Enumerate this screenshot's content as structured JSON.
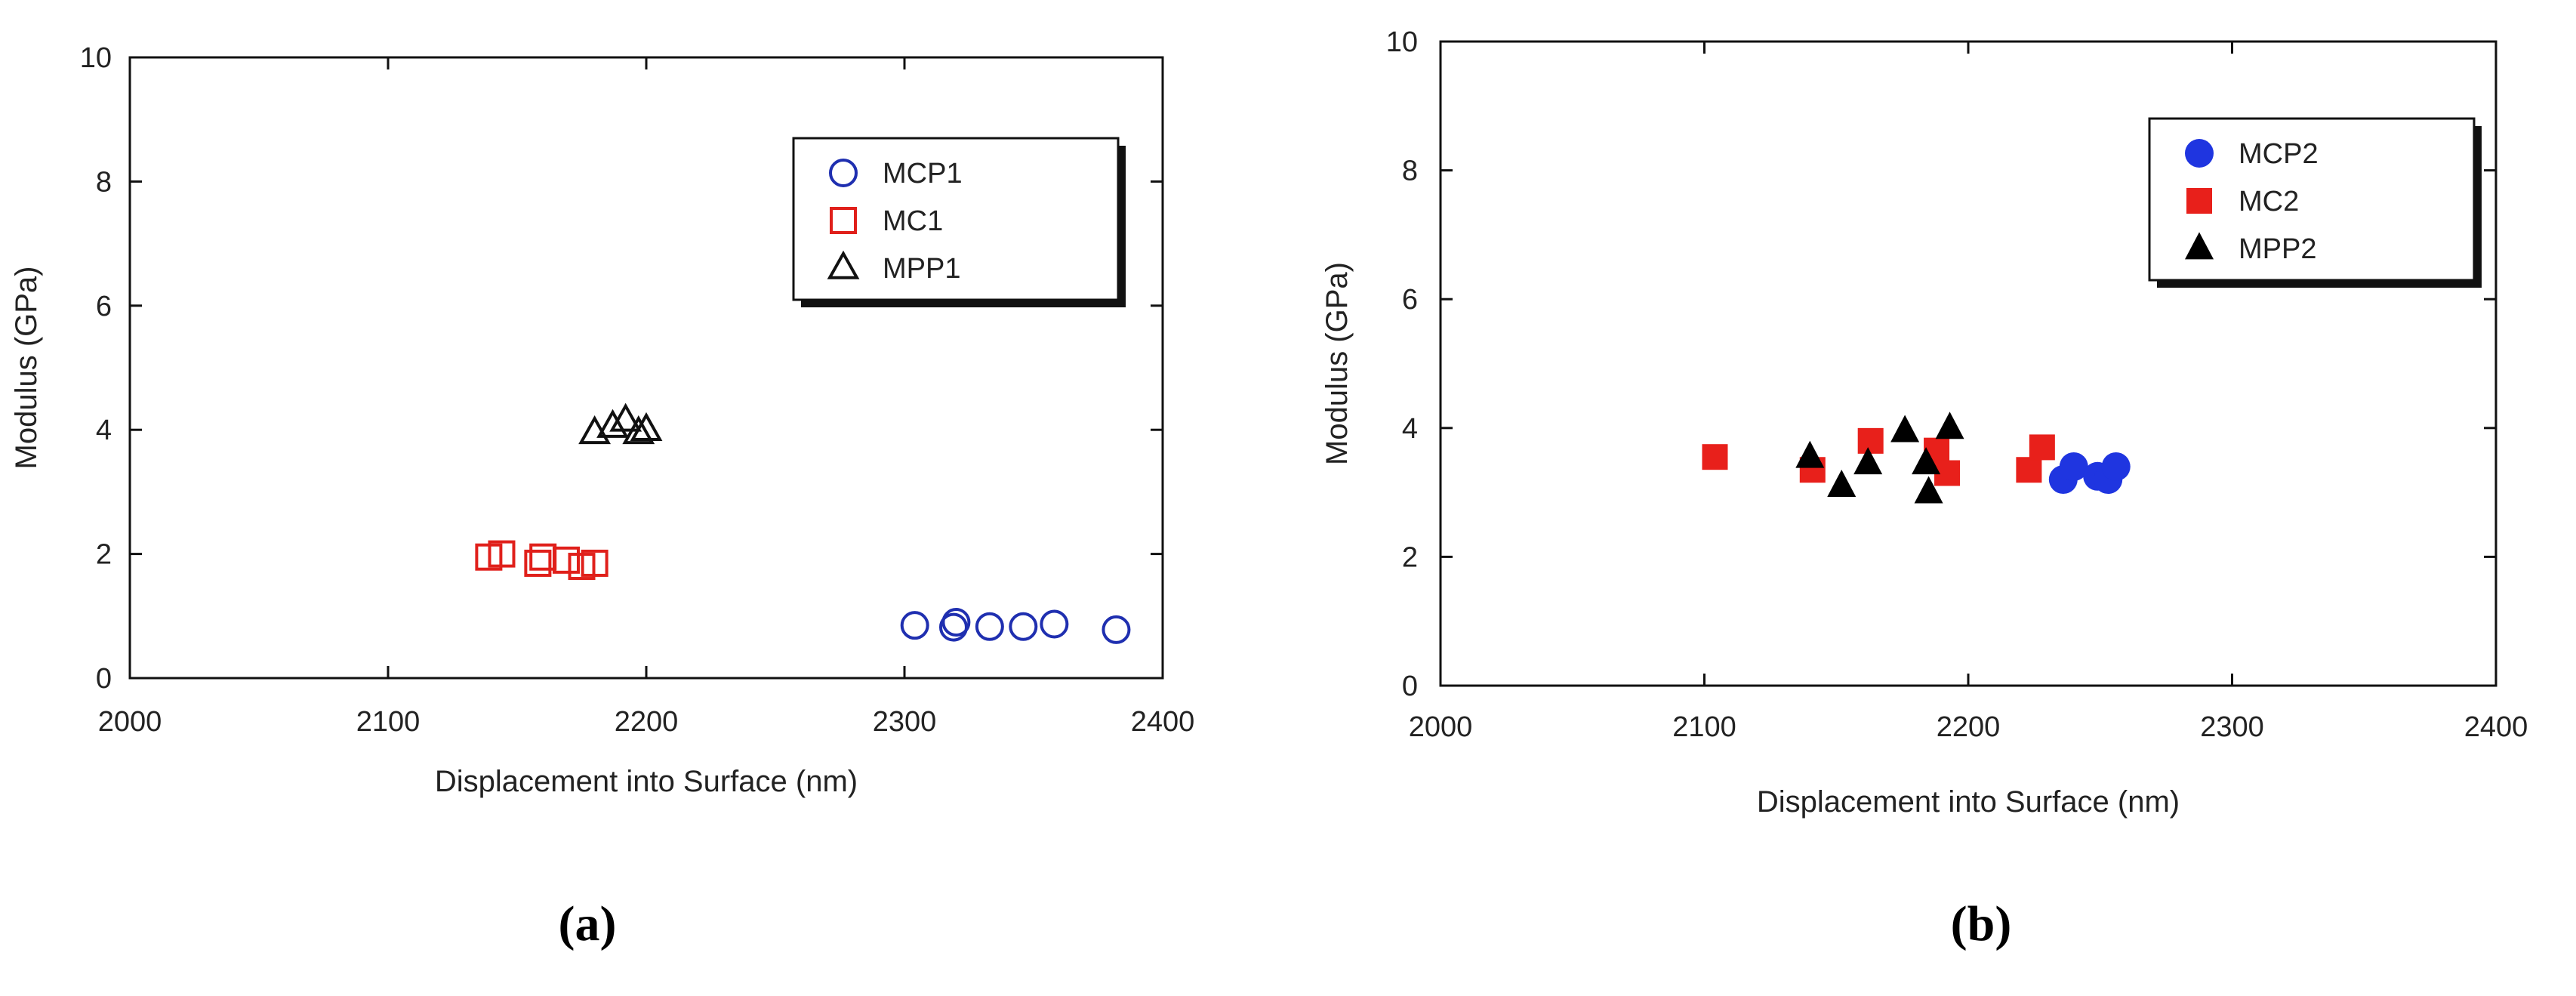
{
  "figure_captions": [
    "(a)",
    "(b)"
  ],
  "chart_data": [
    {
      "id": "a",
      "type": "scatter",
      "caption": "(a)",
      "title": "",
      "xlabel": "Displacement into Surface (nm)",
      "ylabel": "Modulus (GPa)",
      "xlim": [
        2000,
        2400
      ],
      "ylim": [
        0,
        10
      ],
      "xticks": [
        2000,
        2100,
        2200,
        2300,
        2400
      ],
      "yticks": [
        0,
        2,
        4,
        6,
        8,
        10
      ],
      "grid": false,
      "legend_position": "top-right",
      "series": [
        {
          "name": "MCP1",
          "marker": "circle-open",
          "color": "#1f2fb0",
          "x": [
            2304,
            2319,
            2320,
            2333,
            2346,
            2358,
            2382
          ],
          "y": [
            0.85,
            0.82,
            0.9,
            0.83,
            0.83,
            0.87,
            0.78
          ]
        },
        {
          "name": "MC1",
          "marker": "square-open",
          "color": "#e0201b",
          "x": [
            2139,
            2144,
            2158,
            2160,
            2169,
            2175,
            2180
          ],
          "y": [
            1.95,
            2.0,
            1.85,
            1.95,
            1.9,
            1.8,
            1.85
          ]
        },
        {
          "name": "MPP1",
          "marker": "triangle-open",
          "color": "#111111",
          "x": [
            2180,
            2187,
            2192,
            2197,
            2200
          ],
          "y": [
            3.95,
            4.05,
            4.15,
            3.95,
            4.0
          ]
        }
      ]
    },
    {
      "id": "b",
      "type": "scatter",
      "caption": "(b)",
      "title": "",
      "xlabel": "Displacement into Surface (nm)",
      "ylabel": "Modulus (GPa)",
      "xlim": [
        2000,
        2400
      ],
      "ylim": [
        0,
        10
      ],
      "xticks": [
        2000,
        2100,
        2200,
        2300,
        2400
      ],
      "yticks": [
        0,
        2,
        4,
        6,
        8,
        10
      ],
      "grid": false,
      "legend_position": "top-right",
      "series": [
        {
          "name": "MCP2",
          "marker": "circle-filled",
          "color": "#1f35e0",
          "x": [
            2236,
            2240,
            2249,
            2253,
            2256
          ],
          "y": [
            3.2,
            3.4,
            3.25,
            3.2,
            3.4
          ]
        },
        {
          "name": "MC2",
          "marker": "square-filled",
          "color": "#e8201b",
          "x": [
            2104,
            2141,
            2163,
            2188,
            2192,
            2223,
            2228
          ],
          "y": [
            3.55,
            3.35,
            3.8,
            3.65,
            3.3,
            3.35,
            3.7
          ]
        },
        {
          "name": "MPP2",
          "marker": "triangle-filled",
          "color": "#000000",
          "x": [
            2140,
            2152,
            2162,
            2176,
            2184,
            2185,
            2193
          ],
          "y": [
            3.55,
            3.1,
            3.45,
            3.95,
            3.45,
            3.0,
            4.0
          ]
        }
      ]
    }
  ]
}
